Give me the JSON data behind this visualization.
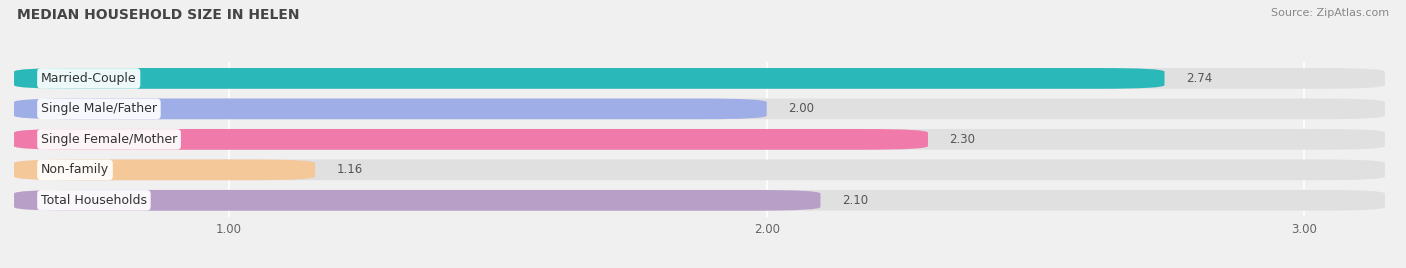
{
  "title": "MEDIAN HOUSEHOLD SIZE IN HELEN",
  "source": "Source: ZipAtlas.com",
  "categories": [
    "Married-Couple",
    "Single Male/Father",
    "Single Female/Mother",
    "Non-family",
    "Total Households"
  ],
  "values": [
    2.74,
    2.0,
    2.3,
    1.16,
    2.1
  ],
  "bar_colors": [
    "#2ab8b8",
    "#a0aee8",
    "#f07aaa",
    "#f5c899",
    "#b89fc8"
  ],
  "xlim": [
    0.6,
    3.15
  ],
  "xticks": [
    1.0,
    2.0,
    3.0
  ],
  "title_fontsize": 10,
  "source_fontsize": 8,
  "label_fontsize": 9,
  "value_fontsize": 8.5,
  "background_color": "#f0f0f0",
  "bar_bg_color": "#e0e0e0",
  "bar_height": 0.68,
  "bar_gap": 0.32
}
